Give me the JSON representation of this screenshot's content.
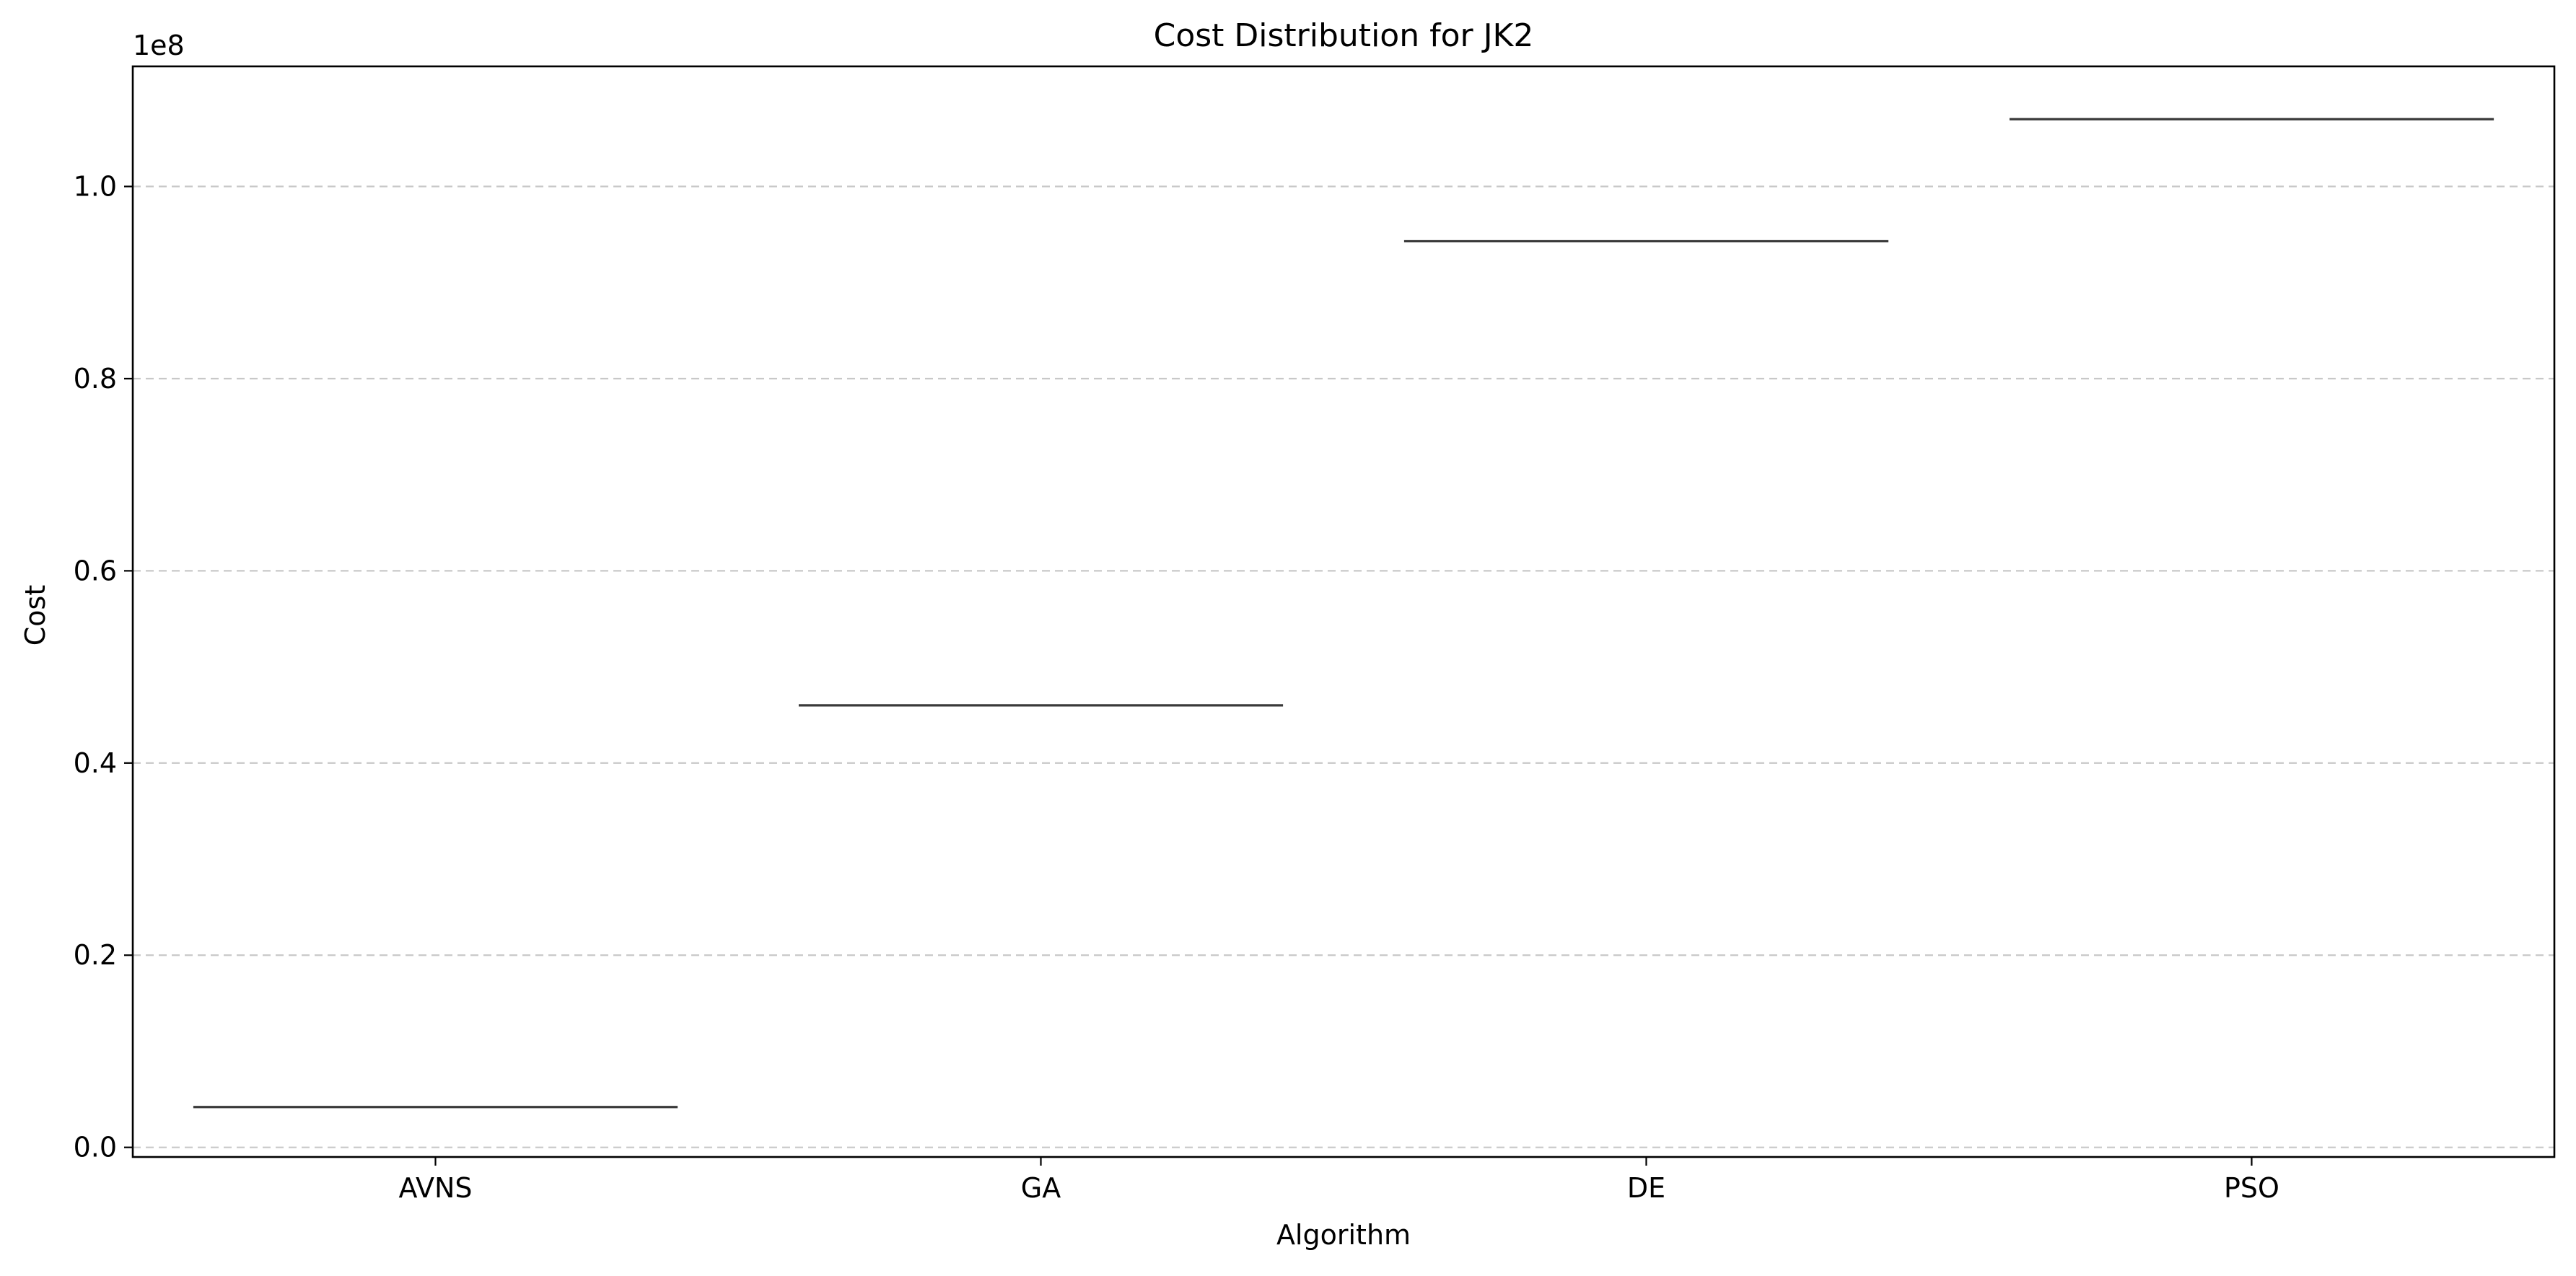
{
  "chart_data": {
    "type": "box",
    "title": "Cost Distribution for JK2",
    "xlabel": "Algorithm",
    "ylabel": "Cost",
    "y_offset_label": "1e8",
    "y_scale_factor": 100000000,
    "categories": [
      "AVNS",
      "GA",
      "DE",
      "PSO"
    ],
    "values": [
      4200000,
      46000000,
      94300000,
      107000000
    ],
    "ylim": [
      -1000000,
      112500000
    ],
    "yticks": [
      0,
      20000000,
      40000000,
      60000000,
      80000000,
      100000000
    ],
    "ytick_labels": [
      "0.0",
      "0.2",
      "0.4",
      "0.6",
      "0.8",
      "1.0"
    ],
    "grid": {
      "axis": "y",
      "style": "dashed",
      "color": "#c8c8c8"
    },
    "line_color": "#3a3a3a",
    "legend": "none"
  }
}
